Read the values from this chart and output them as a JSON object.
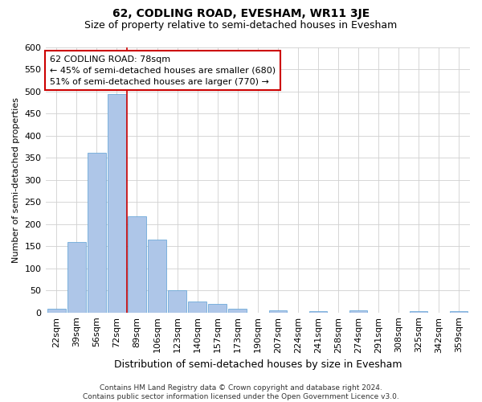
{
  "title": "62, CODLING ROAD, EVESHAM, WR11 3JE",
  "subtitle": "Size of property relative to semi-detached houses in Evesham",
  "xlabel": "Distribution of semi-detached houses by size in Evesham",
  "ylabel": "Number of semi-detached properties",
  "footer_line1": "Contains HM Land Registry data © Crown copyright and database right 2024.",
  "footer_line2": "Contains public sector information licensed under the Open Government Licence v3.0.",
  "categories": [
    "22sqm",
    "39sqm",
    "56sqm",
    "72sqm",
    "89sqm",
    "106sqm",
    "123sqm",
    "140sqm",
    "157sqm",
    "173sqm",
    "190sqm",
    "207sqm",
    "224sqm",
    "241sqm",
    "258sqm",
    "274sqm",
    "291sqm",
    "308sqm",
    "325sqm",
    "342sqm",
    "359sqm"
  ],
  "values": [
    8,
    160,
    362,
    495,
    218,
    165,
    50,
    24,
    20,
    9,
    0,
    5,
    0,
    3,
    0,
    5,
    0,
    0,
    3,
    0,
    3
  ],
  "bar_color": "#aec6e8",
  "bar_edge_color": "#5a9fd4",
  "property_label": "62 CODLING ROAD: 78sqm",
  "pct_smaller": 45,
  "count_smaller": 680,
  "pct_larger": 51,
  "count_larger": 770,
  "red_line_color": "#cc0000",
  "annotation_box_color": "#cc0000",
  "background_color": "#ffffff",
  "grid_color": "#d0d0d0",
  "ylim": [
    0,
    600
  ],
  "yticks": [
    0,
    50,
    100,
    150,
    200,
    250,
    300,
    350,
    400,
    450,
    500,
    550,
    600
  ],
  "title_fontsize": 10,
  "subtitle_fontsize": 9,
  "xlabel_fontsize": 9,
  "ylabel_fontsize": 8,
  "tick_fontsize": 8,
  "annotation_fontsize": 8,
  "footer_fontsize": 6.5,
  "red_line_x": 3.5
}
